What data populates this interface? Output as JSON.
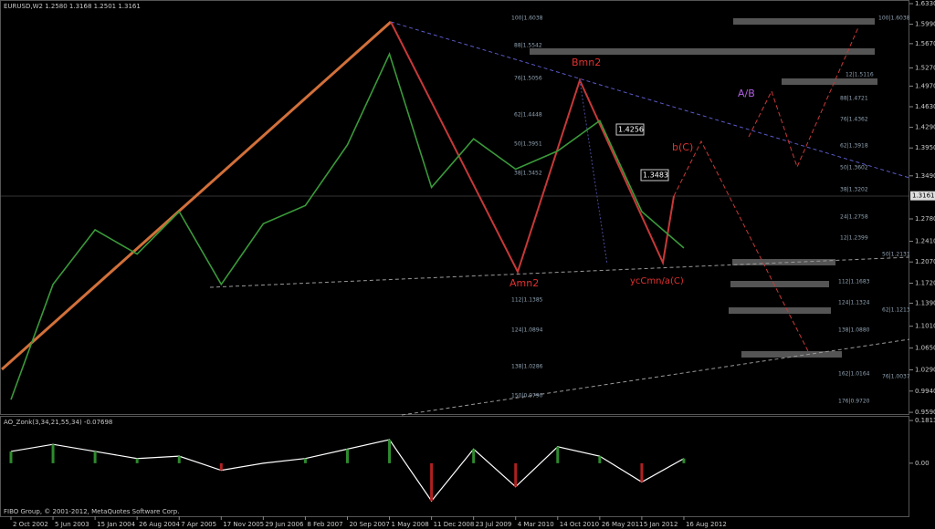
{
  "header": {
    "title": "EURUSD,W2  1.2580 1.3168 1.2501 1.3161",
    "copyright": "FIBO Group, © 2001-2012, MetaQuotes Software Corp."
  },
  "chart_data": [
    {
      "type": "line",
      "color": "#3a9a3a",
      "categories": [
        "2 Oct 2002",
        "5 Jun 2003",
        "15 Jan 2004",
        "26 Aug 2004",
        "7 Apr 2005",
        "17 Nov 2005",
        "29 Jun 2006",
        "8 Feb 2007",
        "20 Sep 2007",
        "1 May 2008",
        "11 Dec 2008",
        "23 Jul 2009",
        "4 Mar 2010",
        "14 Oct 2010",
        "26 May 2011",
        "5 Jan 2012",
        "16 Aug 2012"
      ],
      "values": [
        0.98,
        1.17,
        1.26,
        1.22,
        1.29,
        1.17,
        1.27,
        1.3,
        1.4,
        1.55,
        1.33,
        1.41,
        1.36,
        1.39,
        1.44,
        1.29,
        1.23
      ],
      "ylim": [
        0.9546,
        1.639
      ],
      "yticks": [
        {
          "value": 1.633,
          "label": "1.6330"
        },
        {
          "value": 1.599,
          "label": "1.5990"
        },
        {
          "value": 1.567,
          "label": "1.5670"
        },
        {
          "value": 1.527,
          "label": "1.5270"
        },
        {
          "value": 1.497,
          "label": "1.4970"
        },
        {
          "value": 1.463,
          "label": "1.4630"
        },
        {
          "value": 1.429,
          "label": "1.4290"
        },
        {
          "value": 1.395,
          "label": "1.3950"
        },
        {
          "value": 1.349,
          "label": "1.3490"
        },
        {
          "value": 1.278,
          "label": "1.2780"
        },
        {
          "value": 1.241,
          "label": "1.2410"
        },
        {
          "value": 1.207,
          "label": "1.2070"
        },
        {
          "value": 1.172,
          "label": "1.1720"
        },
        {
          "value": 1.139,
          "label": "1.1390"
        },
        {
          "value": 1.101,
          "label": "1.1010"
        },
        {
          "value": 1.065,
          "label": "1.0650"
        },
        {
          "value": 1.029,
          "label": "1.0290"
        },
        {
          "value": 0.994,
          "label": "0.9940"
        },
        {
          "value": 0.959,
          "label": "0.9590"
        }
      ],
      "current_price": 1.3161,
      "annotations": [
        "Bmn2",
        "Amn2",
        "ycCmn/a(C)",
        "b(C)",
        "A/B",
        "1.4256",
        "1.3483"
      ],
      "fib_labels": [
        "100|1.6038",
        "88|1.5542",
        "76|1.5056",
        "62|1.4448",
        "50|1.3951",
        "38|1.3452",
        "112|1.1385",
        "124|1.0894",
        "138|1.0286",
        "150|0.9790",
        "100|1.6038",
        "12|1.5116",
        "88|1.4721",
        "76|1.4362",
        "62|1.3918",
        "50|1.3602",
        "38|1.3202",
        "24|1.2758",
        "12|1.2399",
        "50|1.2131",
        "112|1.1683",
        "124|1.1324",
        "62|1.1213",
        "138|1.0880",
        "162|1.0164",
        "76|1.0037",
        "176|0.9720"
      ]
    },
    {
      "type": "line",
      "title": "AO_Zonk(3,34,21,55,34) -0.07698",
      "color": "#ffffff",
      "values": [
        0.05,
        0.08,
        0.05,
        0.02,
        0.03,
        -0.03,
        0.0,
        0.02,
        0.06,
        0.1,
        -0.16,
        0.06,
        -0.1,
        0.07,
        0.03,
        -0.08,
        0.02
      ],
      "ylim": [
        -0.225,
        0.197
      ],
      "yticks": [
        0.18135,
        {
          "value": 0,
          "label": "0.00"
        }
      ]
    }
  ]
}
